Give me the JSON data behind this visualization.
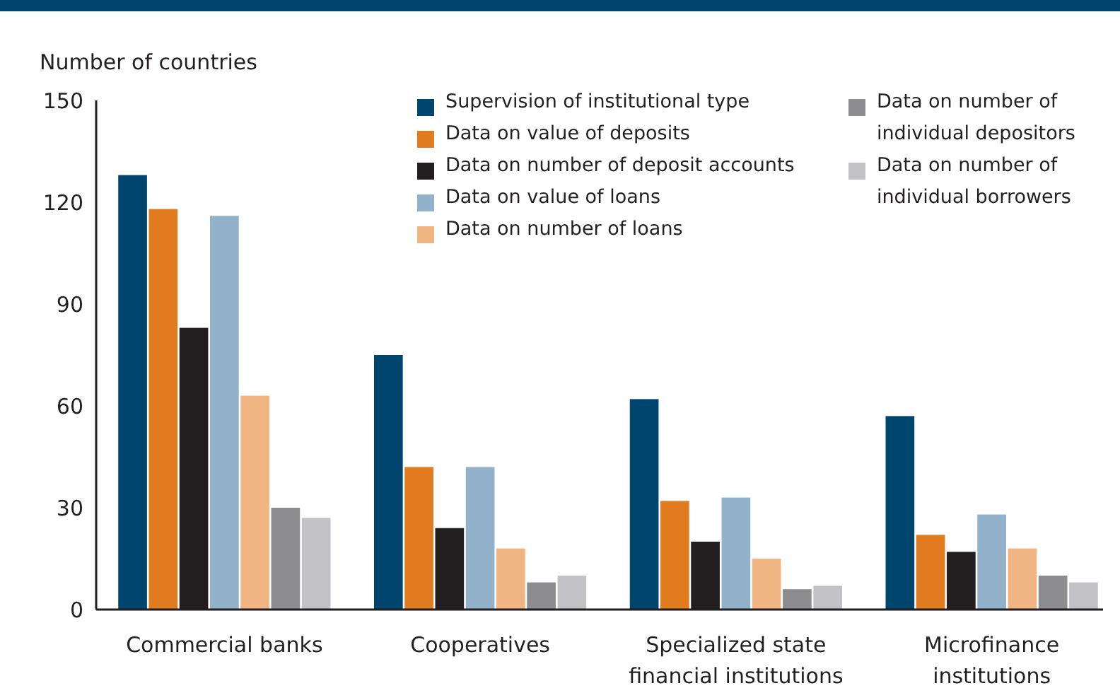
{
  "chart_data": {
    "type": "bar",
    "ylabel": "Number of countries",
    "categories": [
      "Commercial banks",
      "Cooperatives",
      "Specialized state financial institutions",
      "Microfinance institutions"
    ],
    "series": [
      {
        "name": "Supervision of institutional type",
        "color": "#00456e",
        "values": [
          128,
          75,
          62,
          57
        ]
      },
      {
        "name": "Data on value of deposits",
        "color": "#e07b1f",
        "values": [
          118,
          42,
          32,
          22
        ]
      },
      {
        "name": "Data on number of deposit accounts",
        "color": "#231f20",
        "values": [
          83,
          24,
          20,
          17
        ]
      },
      {
        "name": "Data on value of loans",
        "color": "#92b2cc",
        "values": [
          116,
          42,
          33,
          28
        ]
      },
      {
        "name": "Data on number of loans",
        "color": "#f0b582",
        "values": [
          63,
          18,
          15,
          18
        ]
      },
      {
        "name": "Data on number of individual depositors",
        "color": "#8d8d90",
        "values": [
          30,
          8,
          6,
          10
        ]
      },
      {
        "name": "Data on number of individual borrowers",
        "color": "#c2c2c6",
        "values": [
          27,
          10,
          7,
          8
        ]
      }
    ],
    "ylim": [
      0,
      150
    ],
    "yticks": [
      0,
      30,
      60,
      90,
      120,
      150
    ],
    "grid": false,
    "legend": "top right"
  }
}
